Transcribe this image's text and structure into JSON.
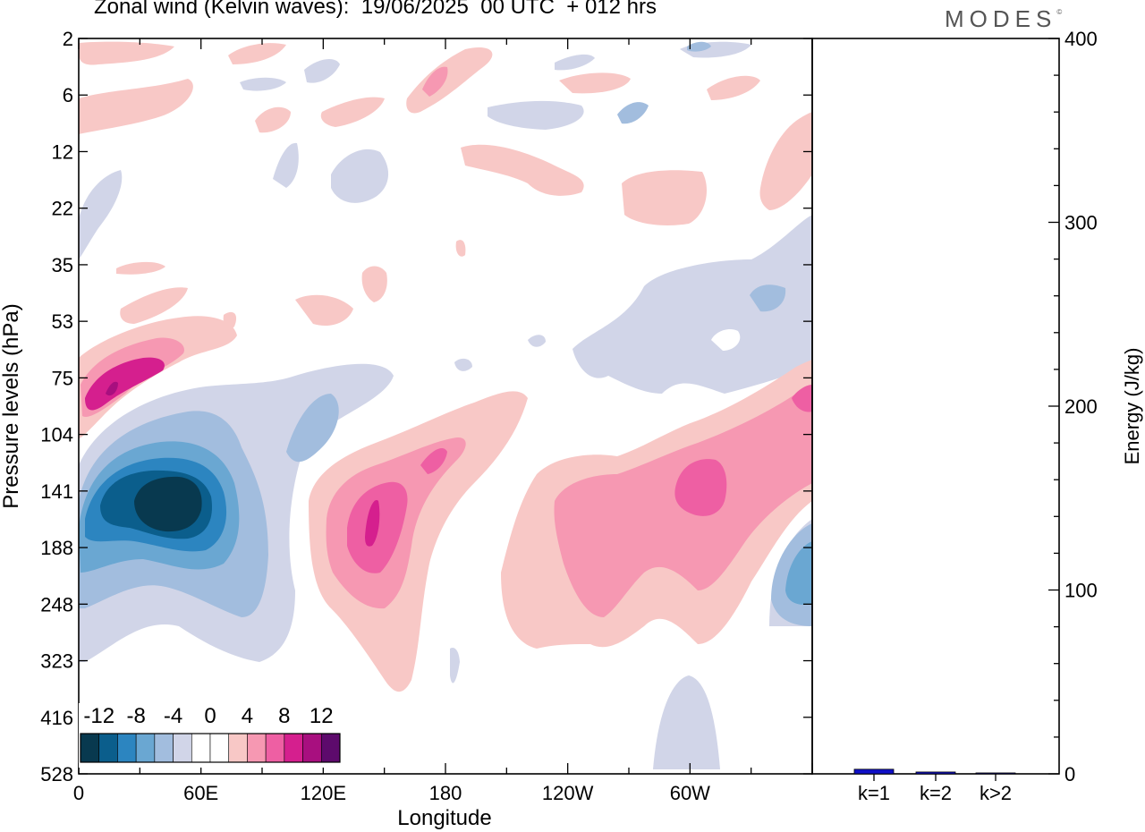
{
  "title": "Zonal wind (Kelvin waves):  19/06/2025  00 UTC  + 012 hrs",
  "logo": "MODES",
  "chart_data": [
    {
      "type": "heatmap",
      "title": "Zonal wind (Kelvin waves):  19/06/2025  00 UTC  + 012 hrs",
      "xlabel": "Longitude",
      "ylabel": "Pressure levels (hPa)",
      "x_ticks": [
        "0",
        "60E",
        "120E",
        "180",
        "120W",
        "60W"
      ],
      "y_ticks": [
        "2",
        "6",
        "12",
        "22",
        "35",
        "53",
        "75",
        "104",
        "141",
        "188",
        "248",
        "323",
        "416",
        "528"
      ],
      "colorbar": {
        "labels": [
          "-12",
          "-8",
          "-4",
          "0",
          "4",
          "8",
          "12"
        ],
        "colors": [
          "#08394f",
          "#0b5e8c",
          "#2c85c0",
          "#6aa7d2",
          "#a2bdde",
          "#d1d5e8",
          "#ffffff",
          "#ffffff",
          "#f8c8c6",
          "#f698b2",
          "#ee5fa3",
          "#d51f8e",
          "#a80f7f",
          "#5d0a6c"
        ],
        "levels": [
          -14,
          -12,
          -10,
          -8,
          -6,
          -4,
          -2,
          0,
          2,
          4,
          6,
          8,
          10,
          12,
          14
        ]
      },
      "features": [
        {
          "lon": 35,
          "level": "141",
          "value": -13,
          "note": "negative core"
        },
        {
          "lon": 15,
          "level": "75",
          "value": 9
        },
        {
          "lon": 143,
          "level": "165",
          "value": 10
        },
        {
          "lon": 298,
          "level": "141",
          "value": 7
        },
        {
          "lon": 354,
          "level": "210",
          "value": -8
        }
      ]
    },
    {
      "type": "bar",
      "ylabel": "Energy (J/kg)",
      "categories": [
        "k=1",
        "k=2",
        "k>2"
      ],
      "values": [
        2.5,
        1.0,
        0.5
      ],
      "ylim": [
        0,
        400
      ],
      "y_ticks": [
        "0",
        "100",
        "200",
        "300",
        "400"
      ],
      "bar_color": "#1010c8"
    }
  ]
}
